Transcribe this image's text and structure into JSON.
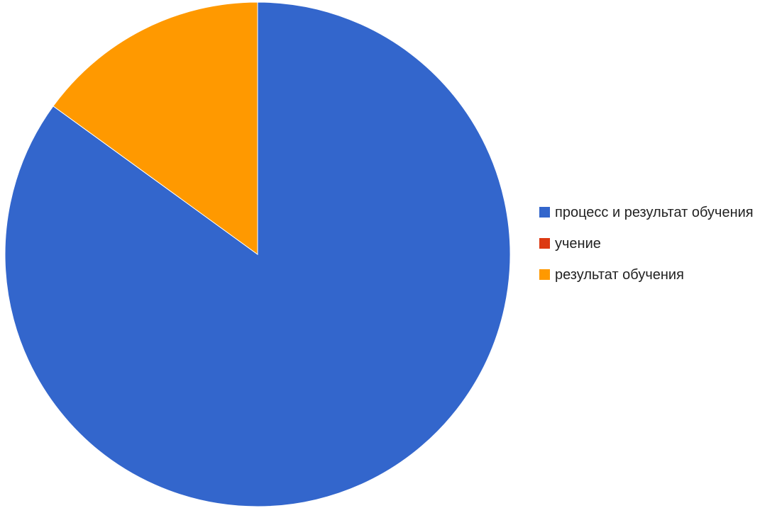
{
  "chart_data": {
    "type": "pie",
    "title": "",
    "slices": [
      {
        "label": "процесс и результат обу­чения",
        "value": 85,
        "color": "#3366cc"
      },
      {
        "label": "учение",
        "value": 0,
        "color": "#dc3912"
      },
      {
        "label": "результат обучения",
        "value": 15,
        "color": "#ff9900"
      }
    ],
    "start_angle_deg": 0,
    "direction": "clockwise",
    "legend_position": "right"
  }
}
